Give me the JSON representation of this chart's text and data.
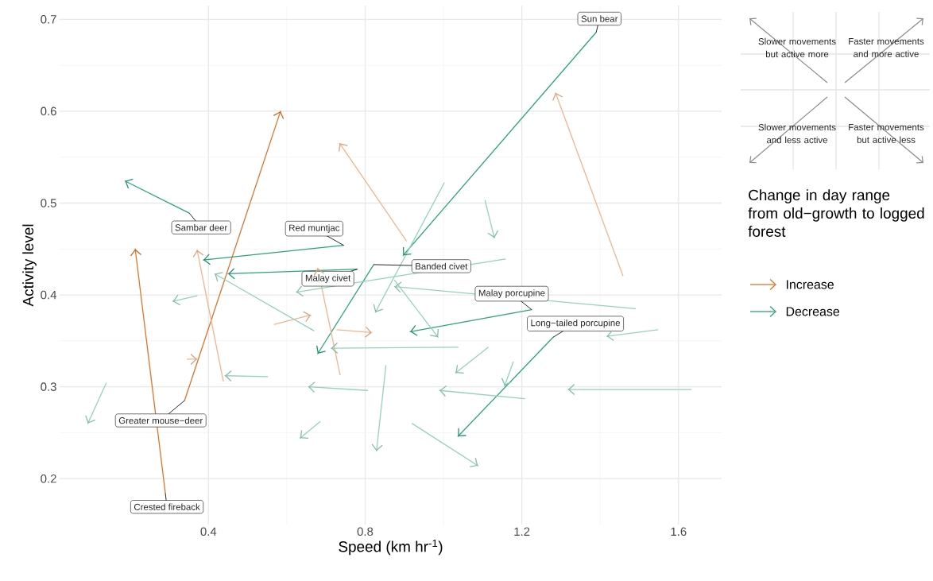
{
  "chart_data": {
    "type": "line",
    "xlabel": "Speed (km hr$^{-1}$)",
    "ylabel": "Activity level",
    "legend_title": "Change in day range from old−growth to logged forest",
    "xlim": [
      0.02,
      1.71
    ],
    "ylim": [
      0.15,
      0.715
    ],
    "xticks": [
      0.4,
      0.8,
      1.2,
      1.6
    ],
    "yticks": [
      0.2,
      0.3,
      0.4,
      0.5,
      0.6,
      0.7
    ],
    "grid": true,
    "legend": "right",
    "series": [
      {
        "name": "Increase",
        "color": "#e0732a",
        "x": [
          0.29,
          0.213,
          null,
          0.339,
          0.584
        ],
        "values": [
          0.184,
          0.45,
          null,
          0.285,
          0.6
        ]
      },
      {
        "name": "Decrease",
        "color": "#2ba37e",
        "x": [
          1.39,
          0.897,
          null,
          0.351,
          0.187,
          null,
          0.745,
          0.387,
          null,
          0.78,
          0.45,
          null,
          0.822,
          0.679,
          null,
          1.225,
          0.915,
          null,
          1.28,
          1.037
        ],
        "values": [
          0.686,
          0.443,
          null,
          0.489,
          0.524,
          null,
          0.454,
          0.438,
          null,
          0.428,
          0.423,
          null,
          0.433,
          0.336,
          null,
          0.384,
          0.36,
          null,
          0.354,
          0.246
        ]
      },
      {
        "color": "#f2b48c",
        "x": [
          0.438,
          0.371,
          null,
          0.905,
          0.735,
          null,
          1.458,
          1.286,
          null,
          0.568,
          0.661,
          null,
          0.728,
          0.817,
          null,
          0.736,
          0.679,
          null,
          0.346,
          0.371
        ],
        "values": [
          0.306,
          0.449,
          null,
          0.459,
          0.565,
          null,
          0.421,
          0.62,
          null,
          0.368,
          0.378,
          null,
          0.362,
          0.359,
          null,
          0.313,
          0.429,
          null,
          0.33,
          0.33
        ]
      },
      {
        "color": "#93d2bc",
        "x": [
          0.371,
          0.309,
          null,
          0.139,
          0.092,
          null,
          0.551,
          0.442,
          null,
          0.669,
          0.416,
          null,
          1.158,
          0.624,
          null,
          1.037,
          0.713,
          null,
          0.806,
          0.655,
          null,
          0.685,
          0.634,
          null,
          0.853,
          0.829,
          null,
          1.002,
          0.826,
          null,
          1.106,
          1.13,
          null,
          1.49,
          0.875,
          null,
          0.875,
          0.986,
          null,
          1.547,
          1.417,
          null,
          1.114,
          1.031,
          null,
          1.178,
          1.156,
          null,
          1.207,
          0.99,
          null,
          1.632,
          1.318,
          null,
          0.92,
          1.088
        ],
        "values": [
          0.399,
          0.393,
          null,
          0.304,
          0.26,
          null,
          0.311,
          0.312,
          null,
          0.361,
          0.423,
          null,
          0.439,
          0.403,
          null,
          0.343,
          0.342,
          null,
          0.296,
          0.3,
          null,
          0.262,
          0.244,
          null,
          0.323,
          0.23,
          null,
          0.522,
          0.381,
          null,
          0.503,
          0.462,
          null,
          0.385,
          0.409,
          null,
          0.416,
          0.354,
          null,
          0.362,
          0.355,
          null,
          0.343,
          0.315,
          null,
          0.327,
          0.301,
          null,
          0.287,
          0.296,
          null,
          0.297,
          0.297,
          null,
          0.26,
          0.214
        ]
      }
    ],
    "annotations": [
      {
        "text": "Sun bear",
        "x": 1.39,
        "y": 0.686
      },
      {
        "text": "Sambar deer",
        "x": 0.351,
        "y": 0.489
      },
      {
        "text": "Red muntjac",
        "x": 0.745,
        "y": 0.454
      },
      {
        "text": "Malay civet",
        "x": 0.78,
        "y": 0.428
      },
      {
        "text": "Banded civet",
        "x": 0.822,
        "y": 0.433
      },
      {
        "text": "Malay porcupine",
        "x": 1.225,
        "y": 0.384
      },
      {
        "text": "Long−tailed porcupine",
        "x": 1.28,
        "y": 0.354
      },
      {
        "text": "Greater mouse−deer",
        "x": 0.339,
        "y": 0.285
      },
      {
        "text": "Crested fireback",
        "x": 0.29,
        "y": 0.184
      },
      "Slower movements but active more",
      "Faster movements and more active",
      "Slower movements and less active",
      "Faster movements but active less"
    ]
  }
}
